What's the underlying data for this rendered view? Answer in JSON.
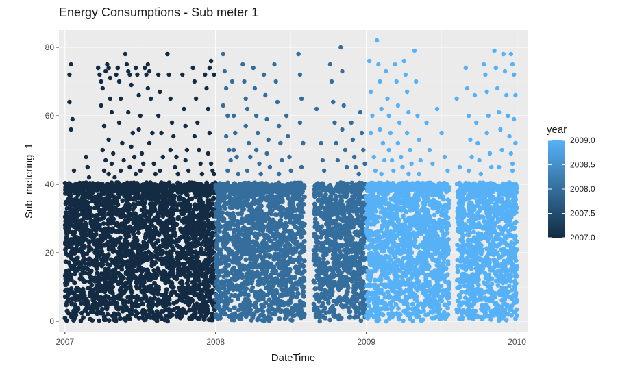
{
  "chart_data": {
    "type": "scatter",
    "title": "Energy Consumptions - Sub meter 1",
    "xlabel": "DateTime",
    "ylabel": "Sub_metering_1",
    "xlim": [
      2006.96,
      2010.07
    ],
    "ylim": [
      -3,
      85
    ],
    "x_ticks": [
      {
        "value": 2007,
        "label": "2007"
      },
      {
        "value": 2008,
        "label": "2008"
      },
      {
        "value": 2009,
        "label": "2009"
      },
      {
        "value": 2010,
        "label": "2010"
      }
    ],
    "y_ticks": [
      {
        "value": 0,
        "label": "0"
      },
      {
        "value": 20,
        "label": "20"
      },
      {
        "value": 40,
        "label": "40"
      },
      {
        "value": 60,
        "label": "60"
      },
      {
        "value": 80,
        "label": "80"
      }
    ],
    "grid": true,
    "panel_background": "#ebebeb",
    "color_scale": {
      "title": "year",
      "low": {
        "value": 2007.0,
        "color": "#132B43"
      },
      "high": {
        "value": 2009.0,
        "color": "#56B1F7"
      },
      "ticks": [
        {
          "value": 2009.0,
          "label": "2009.0"
        },
        {
          "value": 2008.5,
          "label": "2008.5"
        },
        {
          "value": 2008.0,
          "label": "2008.0"
        },
        {
          "value": 2007.5,
          "label": "2007.5"
        },
        {
          "value": 2007.0,
          "label": "2007.0"
        }
      ]
    },
    "legend_position": "right",
    "series": [
      {
        "year": 2007,
        "x_range": [
          2007.0,
          2008.0
        ],
        "dense_band": [
          0,
          40
        ],
        "gaps": [
          [
            2007.73,
            2007.74
          ]
        ],
        "outliers": [
          [
            2007.04,
            75
          ],
          [
            2007.03,
            72
          ],
          [
            2007.03,
            64
          ],
          [
            2007.05,
            59
          ],
          [
            2007.04,
            56
          ],
          [
            2007.06,
            44
          ],
          [
            2007.08,
            40
          ],
          [
            2007.14,
            48
          ],
          [
            2007.15,
            45
          ],
          [
            2007.16,
            42
          ],
          [
            2007.22,
            74
          ],
          [
            2007.23,
            72
          ],
          [
            2007.24,
            70
          ],
          [
            2007.25,
            68
          ],
          [
            2007.24,
            63
          ],
          [
            2007.26,
            57
          ],
          [
            2007.25,
            50
          ],
          [
            2007.27,
            47
          ],
          [
            2007.26,
            44
          ],
          [
            2007.29,
            43
          ],
          [
            2007.27,
            73
          ],
          [
            2007.28,
            75
          ],
          [
            2007.29,
            74
          ],
          [
            2007.3,
            71
          ],
          [
            2007.3,
            65
          ],
          [
            2007.31,
            61
          ],
          [
            2007.29,
            53
          ],
          [
            2007.32,
            49
          ],
          [
            2007.31,
            46
          ],
          [
            2007.33,
            42
          ],
          [
            2007.34,
            72
          ],
          [
            2007.35,
            74
          ],
          [
            2007.36,
            70
          ],
          [
            2007.37,
            65
          ],
          [
            2007.36,
            58
          ],
          [
            2007.38,
            52
          ],
          [
            2007.39,
            47
          ],
          [
            2007.37,
            44
          ],
          [
            2007.4,
            78
          ],
          [
            2007.41,
            75
          ],
          [
            2007.42,
            73
          ],
          [
            2007.43,
            72
          ],
          [
            2007.44,
            69
          ],
          [
            2007.42,
            61
          ],
          [
            2007.45,
            55
          ],
          [
            2007.44,
            51
          ],
          [
            2007.46,
            48
          ],
          [
            2007.43,
            45
          ],
          [
            2007.47,
            43
          ],
          [
            2007.47,
            74
          ],
          [
            2007.48,
            72
          ],
          [
            2007.49,
            66
          ],
          [
            2007.5,
            60
          ],
          [
            2007.49,
            56
          ],
          [
            2007.51,
            49
          ],
          [
            2007.5,
            44
          ],
          [
            2007.52,
            46
          ],
          [
            2007.53,
            74
          ],
          [
            2007.54,
            72
          ],
          [
            2007.55,
            75
          ],
          [
            2007.56,
            73
          ],
          [
            2007.55,
            68
          ],
          [
            2007.57,
            65
          ],
          [
            2007.58,
            55
          ],
          [
            2007.56,
            52
          ],
          [
            2007.59,
            46
          ],
          [
            2007.6,
            43
          ],
          [
            2007.62,
            72
          ],
          [
            2007.63,
            67
          ],
          [
            2007.62,
            60
          ],
          [
            2007.64,
            55
          ],
          [
            2007.65,
            48
          ],
          [
            2007.63,
            44
          ],
          [
            2007.68,
            78
          ],
          [
            2007.69,
            72
          ],
          [
            2007.7,
            65
          ],
          [
            2007.71,
            58
          ],
          [
            2007.72,
            54
          ],
          [
            2007.7,
            50
          ],
          [
            2007.74,
            48
          ],
          [
            2007.73,
            45
          ],
          [
            2007.75,
            43
          ],
          [
            2007.78,
            72
          ],
          [
            2007.79,
            62
          ],
          [
            2007.8,
            57
          ],
          [
            2007.81,
            50
          ],
          [
            2007.8,
            47
          ],
          [
            2007.82,
            44
          ],
          [
            2007.85,
            74
          ],
          [
            2007.86,
            70
          ],
          [
            2007.87,
            65
          ],
          [
            2007.88,
            58
          ],
          [
            2007.86,
            54
          ],
          [
            2007.89,
            50
          ],
          [
            2007.9,
            46
          ],
          [
            2007.91,
            43
          ],
          [
            2007.93,
            72
          ],
          [
            2007.94,
            68
          ],
          [
            2007.95,
            62
          ],
          [
            2007.96,
            55
          ],
          [
            2007.95,
            49
          ],
          [
            2007.97,
            46
          ],
          [
            2007.98,
            44
          ],
          [
            2007.99,
            43
          ],
          [
            2007.96,
            74
          ],
          [
            2007.97,
            76
          ],
          [
            2007.99,
            72
          ]
        ]
      },
      {
        "year": 2008,
        "x_range": [
          2008.0,
          2009.0
        ],
        "dense_band": [
          0,
          40
        ],
        "gaps": [
          [
            2008.59,
            2008.65
          ]
        ],
        "outliers": [
          [
            2008.05,
            78
          ],
          [
            2008.06,
            73
          ],
          [
            2008.07,
            68
          ],
          [
            2008.05,
            63
          ],
          [
            2008.08,
            60
          ],
          [
            2008.07,
            54
          ],
          [
            2008.09,
            50
          ],
          [
            2008.1,
            47
          ],
          [
            2008.08,
            44
          ],
          [
            2008.11,
            70
          ],
          [
            2008.12,
            60
          ],
          [
            2008.13,
            55
          ],
          [
            2008.12,
            50
          ],
          [
            2008.14,
            48
          ],
          [
            2008.15,
            43
          ],
          [
            2008.18,
            75
          ],
          [
            2008.19,
            70
          ],
          [
            2008.2,
            65
          ],
          [
            2008.21,
            62
          ],
          [
            2008.2,
            57
          ],
          [
            2008.22,
            52
          ],
          [
            2008.23,
            48
          ],
          [
            2008.21,
            44
          ],
          [
            2008.25,
            74
          ],
          [
            2008.26,
            68
          ],
          [
            2008.27,
            60
          ],
          [
            2008.28,
            55
          ],
          [
            2008.27,
            50
          ],
          [
            2008.29,
            46
          ],
          [
            2008.3,
            43
          ],
          [
            2008.32,
            72
          ],
          [
            2008.33,
            66
          ],
          [
            2008.34,
            59
          ],
          [
            2008.35,
            53
          ],
          [
            2008.34,
            49
          ],
          [
            2008.36,
            45
          ],
          [
            2008.39,
            75
          ],
          [
            2008.4,
            70
          ],
          [
            2008.41,
            64
          ],
          [
            2008.42,
            57
          ],
          [
            2008.43,
            52
          ],
          [
            2008.44,
            47
          ],
          [
            2008.42,
            43
          ],
          [
            2008.47,
            60
          ],
          [
            2008.48,
            54
          ],
          [
            2008.49,
            48
          ],
          [
            2008.5,
            44
          ],
          [
            2008.55,
            78
          ],
          [
            2008.56,
            72
          ],
          [
            2008.57,
            65
          ],
          [
            2008.56,
            58
          ],
          [
            2008.58,
            52
          ],
          [
            2008.57,
            45
          ],
          [
            2008.67,
            62
          ],
          [
            2008.7,
            52
          ],
          [
            2008.71,
            47
          ],
          [
            2008.72,
            44
          ],
          [
            2008.76,
            75
          ],
          [
            2008.77,
            70
          ],
          [
            2008.78,
            64
          ],
          [
            2008.79,
            58
          ],
          [
            2008.8,
            52
          ],
          [
            2008.81,
            47
          ],
          [
            2008.83,
            80
          ],
          [
            2008.84,
            73
          ],
          [
            2008.85,
            63
          ],
          [
            2008.84,
            56
          ],
          [
            2008.86,
            50
          ],
          [
            2008.87,
            45
          ],
          [
            2008.9,
            58
          ],
          [
            2008.91,
            53
          ],
          [
            2008.92,
            48
          ],
          [
            2008.93,
            45
          ],
          [
            2008.96,
            61
          ],
          [
            2008.97,
            55
          ],
          [
            2008.98,
            50
          ],
          [
            2008.99,
            46
          ],
          [
            2008.95,
            43
          ]
        ]
      },
      {
        "year": 2009,
        "x_range": [
          2009.0,
          2010.0
        ],
        "dense_band": [
          0,
          40
        ],
        "gaps": [
          [
            2009.55,
            2009.6
          ]
        ],
        "outliers": [
          [
            2009.02,
            76
          ],
          [
            2009.03,
            67
          ],
          [
            2009.04,
            60
          ],
          [
            2009.03,
            55
          ],
          [
            2009.05,
            48
          ],
          [
            2009.06,
            44
          ],
          [
            2009.07,
            82
          ],
          [
            2009.08,
            75
          ],
          [
            2009.09,
            70
          ],
          [
            2009.1,
            62
          ],
          [
            2009.09,
            56
          ],
          [
            2009.11,
            52
          ],
          [
            2009.12,
            47
          ],
          [
            2009.1,
            43
          ],
          [
            2009.13,
            73
          ],
          [
            2009.14,
            65
          ],
          [
            2009.15,
            60
          ],
          [
            2009.16,
            55
          ],
          [
            2009.15,
            50
          ],
          [
            2009.17,
            47
          ],
          [
            2009.18,
            44
          ],
          [
            2009.19,
            75
          ],
          [
            2009.2,
            70
          ],
          [
            2009.21,
            63
          ],
          [
            2009.22,
            58
          ],
          [
            2009.21,
            52
          ],
          [
            2009.23,
            48
          ],
          [
            2009.24,
            45
          ],
          [
            2009.25,
            76
          ],
          [
            2009.26,
            72
          ],
          [
            2009.27,
            67
          ],
          [
            2009.28,
            61
          ],
          [
            2009.27,
            55
          ],
          [
            2009.29,
            50
          ],
          [
            2009.3,
            46
          ],
          [
            2009.28,
            43
          ],
          [
            2009.32,
            79
          ],
          [
            2009.33,
            70
          ],
          [
            2009.34,
            60
          ],
          [
            2009.35,
            53
          ],
          [
            2009.36,
            47
          ],
          [
            2009.35,
            43
          ],
          [
            2009.4,
            58
          ],
          [
            2009.42,
            50
          ],
          [
            2009.44,
            46
          ],
          [
            2009.47,
            62
          ],
          [
            2009.5,
            55
          ],
          [
            2009.52,
            48
          ],
          [
            2009.54,
            44
          ],
          [
            2009.6,
            65
          ],
          [
            2009.62,
            45
          ],
          [
            2009.66,
            74
          ],
          [
            2009.67,
            68
          ],
          [
            2009.68,
            60
          ],
          [
            2009.69,
            53
          ],
          [
            2009.7,
            48
          ],
          [
            2009.68,
            44
          ],
          [
            2009.72,
            66
          ],
          [
            2009.73,
            58
          ],
          [
            2009.74,
            52
          ],
          [
            2009.75,
            47
          ],
          [
            2009.76,
            43
          ],
          [
            2009.78,
            75
          ],
          [
            2009.79,
            72
          ],
          [
            2009.8,
            67
          ],
          [
            2009.81,
            60
          ],
          [
            2009.8,
            55
          ],
          [
            2009.82,
            49
          ],
          [
            2009.83,
            45
          ],
          [
            2009.85,
            79
          ],
          [
            2009.86,
            74
          ],
          [
            2009.87,
            68
          ],
          [
            2009.88,
            61
          ],
          [
            2009.89,
            56
          ],
          [
            2009.9,
            50
          ],
          [
            2009.88,
            45
          ],
          [
            2009.91,
            78
          ],
          [
            2009.92,
            73
          ],
          [
            2009.93,
            66
          ],
          [
            2009.94,
            60
          ],
          [
            2009.95,
            54
          ],
          [
            2009.96,
            49
          ],
          [
            2009.97,
            44
          ],
          [
            2009.96,
            78
          ],
          [
            2009.97,
            75
          ],
          [
            2009.98,
            72
          ],
          [
            2009.99,
            66
          ],
          [
            2009.98,
            59
          ],
          [
            2009.99,
            52
          ],
          [
            2009.97,
            46
          ]
        ]
      }
    ]
  }
}
